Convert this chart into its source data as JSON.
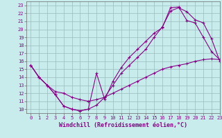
{
  "title": "",
  "xlabel": "Windchill (Refroidissement éolien,°C)",
  "background_color": "#c8ecec",
  "line_color": "#880088",
  "grid_color": "#99bbbb",
  "xlim": [
    -0.5,
    23
  ],
  "ylim": [
    9.5,
    23.5
  ],
  "xticks": [
    0,
    1,
    2,
    3,
    4,
    5,
    6,
    7,
    8,
    9,
    10,
    11,
    12,
    13,
    14,
    15,
    16,
    17,
    18,
    19,
    20,
    21,
    22,
    23
  ],
  "yticks": [
    10,
    11,
    12,
    13,
    14,
    15,
    16,
    17,
    18,
    19,
    20,
    21,
    22,
    23
  ],
  "line1_x": [
    0,
    1,
    2,
    3,
    4,
    5,
    6,
    7,
    8,
    9,
    10,
    11,
    12,
    13,
    14,
    15,
    16,
    17,
    18,
    19,
    20,
    21,
    22,
    23
  ],
  "line1_y": [
    15.5,
    14.0,
    13.0,
    11.8,
    10.4,
    10.0,
    9.8,
    10.0,
    14.5,
    11.2,
    13.5,
    15.2,
    16.5,
    17.5,
    18.5,
    19.5,
    20.2,
    22.7,
    22.8,
    21.1,
    20.8,
    19.0,
    17.2,
    16.2
  ],
  "line2_x": [
    0,
    1,
    2,
    3,
    4,
    5,
    6,
    7,
    8,
    9,
    10,
    11,
    12,
    13,
    14,
    15,
    16,
    17,
    18,
    19,
    20,
    21,
    22,
    23
  ],
  "line2_y": [
    15.5,
    14.0,
    13.0,
    12.2,
    12.0,
    11.5,
    11.2,
    11.0,
    11.2,
    11.5,
    12.0,
    12.5,
    13.0,
    13.5,
    14.0,
    14.5,
    15.0,
    15.3,
    15.5,
    15.7,
    16.0,
    16.2,
    16.3,
    16.2
  ],
  "line3_x": [
    0,
    1,
    2,
    3,
    4,
    5,
    6,
    7,
    8,
    9,
    10,
    11,
    12,
    13,
    14,
    15,
    16,
    17,
    18,
    19,
    20,
    21,
    22,
    23
  ],
  "line3_y": [
    15.5,
    14.0,
    13.0,
    11.8,
    10.4,
    10.0,
    9.8,
    10.0,
    10.5,
    11.5,
    13.0,
    14.5,
    15.5,
    16.5,
    17.5,
    19.0,
    20.3,
    22.3,
    22.7,
    22.2,
    21.2,
    20.8,
    18.8,
    16.0
  ],
  "marker": "+",
  "markersize": 3,
  "linewidth": 0.8,
  "tick_fontsize": 5,
  "label_fontsize": 6,
  "border_color": "#666666"
}
